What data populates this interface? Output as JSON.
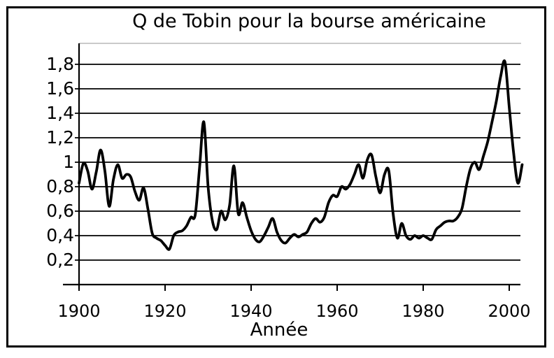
{
  "colors": {
    "background": "#ffffff",
    "frame": "#000000",
    "line": "#000000",
    "grid": "#000000",
    "plot_top_border": "#b8b8b8"
  },
  "chart_data": {
    "type": "line",
    "title": "Q de Tobin pour la bourse américaine",
    "xlabel": "Année",
    "ylabel": "",
    "xlim": [
      1900,
      2003
    ],
    "ylim": [
      0.05,
      1.95
    ],
    "grid": "horizontal",
    "legend_position": "none",
    "x_ticks": [
      {
        "value": 1900,
        "label": "1900"
      },
      {
        "value": 1920,
        "label": "1920"
      },
      {
        "value": 1940,
        "label": "1940"
      },
      {
        "value": 1960,
        "label": "1960"
      },
      {
        "value": 1980,
        "label": "1980"
      },
      {
        "value": 2000,
        "label": "2000"
      }
    ],
    "y_ticks": [
      {
        "value": 1.8,
        "label": "1,8"
      },
      {
        "value": 1.6,
        "label": "1,6"
      },
      {
        "value": 1.4,
        "label": "1,4"
      },
      {
        "value": 1.2,
        "label": "1,2"
      },
      {
        "value": 1.0,
        "label": "1"
      },
      {
        "value": 0.8,
        "label": "0,8"
      },
      {
        "value": 0.6,
        "label": "0,6"
      },
      {
        "value": 0.4,
        "label": "0,4"
      },
      {
        "value": 0.2,
        "label": "0,2"
      }
    ],
    "series": [
      {
        "name": "Q de Tobin (bourse américaine)",
        "x": [
          1900,
          1901,
          1902,
          1903,
          1904,
          1905,
          1906,
          1907,
          1908,
          1909,
          1910,
          1911,
          1912,
          1913,
          1914,
          1915,
          1916,
          1917,
          1918,
          1919,
          1920,
          1921,
          1922,
          1923,
          1924,
          1925,
          1926,
          1927,
          1928,
          1929,
          1930,
          1931,
          1932,
          1933,
          1934,
          1935,
          1936,
          1937,
          1938,
          1939,
          1940,
          1941,
          1942,
          1943,
          1944,
          1945,
          1946,
          1947,
          1948,
          1949,
          1950,
          1951,
          1952,
          1953,
          1954,
          1955,
          1956,
          1957,
          1958,
          1959,
          1960,
          1961,
          1962,
          1963,
          1964,
          1965,
          1966,
          1967,
          1968,
          1969,
          1970,
          1971,
          1972,
          1973,
          1974,
          1975,
          1976,
          1977,
          1978,
          1979,
          1980,
          1981,
          1982,
          1983,
          1984,
          1985,
          1986,
          1987,
          1988,
          1989,
          1990,
          1991,
          1992,
          1993,
          1994,
          1995,
          1996,
          1997,
          1998,
          1999,
          2000,
          2001,
          2002,
          2003
        ],
        "y": [
          0.83,
          0.99,
          0.93,
          0.78,
          0.92,
          1.1,
          0.93,
          0.64,
          0.86,
          0.98,
          0.87,
          0.9,
          0.88,
          0.76,
          0.69,
          0.79,
          0.62,
          0.42,
          0.38,
          0.36,
          0.32,
          0.29,
          0.4,
          0.43,
          0.44,
          0.48,
          0.55,
          0.57,
          0.95,
          1.33,
          0.8,
          0.52,
          0.45,
          0.6,
          0.53,
          0.65,
          0.97,
          0.58,
          0.67,
          0.55,
          0.44,
          0.37,
          0.35,
          0.4,
          0.47,
          0.54,
          0.43,
          0.36,
          0.34,
          0.38,
          0.41,
          0.39,
          0.41,
          0.43,
          0.5,
          0.54,
          0.51,
          0.55,
          0.67,
          0.73,
          0.72,
          0.8,
          0.78,
          0.82,
          0.9,
          0.98,
          0.87,
          1.02,
          1.06,
          0.88,
          0.75,
          0.9,
          0.93,
          0.58,
          0.38,
          0.5,
          0.4,
          0.37,
          0.4,
          0.38,
          0.4,
          0.38,
          0.37,
          0.45,
          0.48,
          0.51,
          0.52,
          0.52,
          0.55,
          0.62,
          0.8,
          0.95,
          1.0,
          0.94,
          1.05,
          1.17,
          1.33,
          1.5,
          1.7,
          1.82,
          1.45,
          1.08,
          0.83,
          0.98
        ]
      }
    ]
  }
}
